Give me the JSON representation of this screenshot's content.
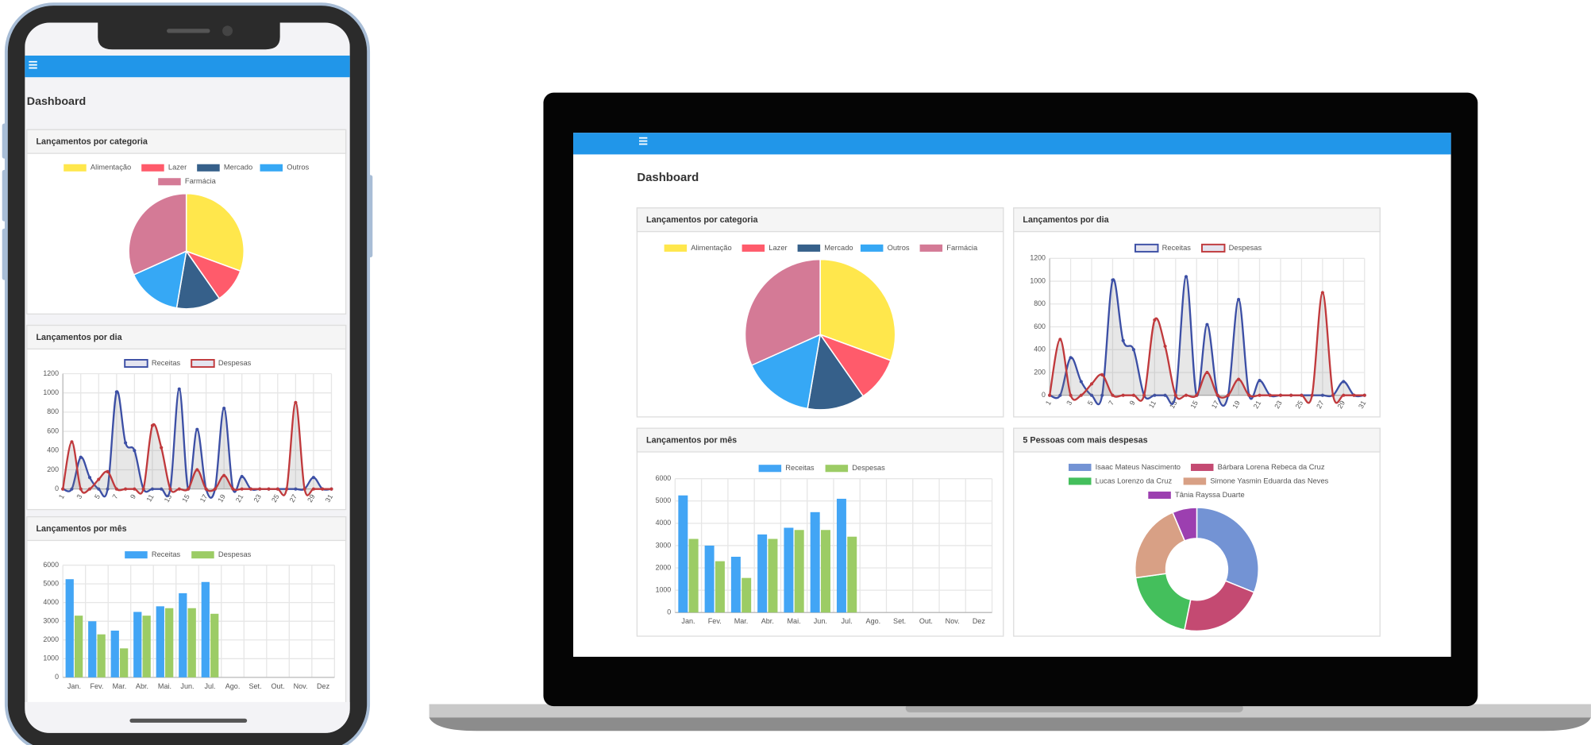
{
  "header": {
    "title": "Dashboard"
  },
  "chart_data": [
    {
      "type": "pie",
      "title": "Lançamentos por categoria",
      "categories": [
        "Alimentação",
        "Lazer",
        "Mercado",
        "Outros",
        "Farmácia"
      ],
      "values": [
        30.6,
        9.7,
        12.4,
        15.6,
        31.7
      ],
      "colors": [
        "#ffe74c",
        "#ff5b6b",
        "#36608a",
        "#36a8f5",
        "#d47a96"
      ]
    },
    {
      "type": "line",
      "title": "Lançamentos por dia",
      "x": [
        1,
        2,
        3,
        4,
        5,
        6,
        7,
        8,
        9,
        10,
        11,
        12,
        13,
        14,
        15,
        16,
        17,
        18,
        19,
        20,
        21,
        22,
        23,
        24,
        25,
        26,
        27,
        28,
        29,
        30,
        31
      ],
      "xlim": [
        1,
        31
      ],
      "xticks": [
        1,
        3,
        5,
        7,
        9,
        11,
        13,
        15,
        17,
        19,
        21,
        23,
        25,
        27,
        29,
        31
      ],
      "ylim": [
        0,
        1200
      ],
      "yticks": [
        0,
        200,
        400,
        600,
        800,
        1000,
        1200
      ],
      "grid": true,
      "series": [
        {
          "name": "Receitas",
          "color": "#3c4fa5",
          "values": [
            0,
            0,
            330,
            120,
            0,
            0,
            1010,
            480,
            400,
            0,
            0,
            0,
            0,
            1040,
            0,
            620,
            0,
            0,
            840,
            0,
            130,
            0,
            0,
            0,
            0,
            0,
            0,
            0,
            120,
            0,
            0
          ]
        },
        {
          "name": "Despesas",
          "color": "#c0393c",
          "values": [
            0,
            490,
            0,
            0,
            100,
            180,
            0,
            0,
            0,
            0,
            660,
            430,
            0,
            0,
            0,
            200,
            0,
            0,
            140,
            0,
            0,
            0,
            0,
            0,
            0,
            0,
            900,
            0,
            0,
            0,
            0
          ]
        }
      ]
    },
    {
      "type": "bar",
      "title": "Lançamentos por mês",
      "categories": [
        "Jan.",
        "Fev.",
        "Mar.",
        "Abr.",
        "Mai.",
        "Jun.",
        "Jul.",
        "Ago.",
        "Set.",
        "Out.",
        "Nov.",
        "Dez"
      ],
      "ylim": [
        0,
        6000
      ],
      "yticks": [
        0,
        1000,
        2000,
        3000,
        4000,
        5000,
        6000
      ],
      "grid": true,
      "series": [
        {
          "name": "Receitas",
          "color": "#42a5f5",
          "values": [
            5250,
            3000,
            2500,
            3500,
            3800,
            4500,
            5100,
            null,
            null,
            null,
            null,
            null
          ]
        },
        {
          "name": "Despesas",
          "color": "#9ccc65",
          "values": [
            3300,
            2300,
            1550,
            3300,
            3700,
            3700,
            3400,
            null,
            null,
            null,
            null,
            null
          ]
        }
      ]
    },
    {
      "type": "doughnut",
      "title": "5 Pessoas com mais despesas",
      "categories": [
        "Isaac Mateus Nascimento",
        "Bárbara Lorena Rebeca da Cruz",
        "Lucas Lorenzo da Cruz",
        "Simone Yasmin Eduarda das Neves",
        "Tânia Rayssa Duarte"
      ],
      "values": [
        31.1,
        22.1,
        19.6,
        20.8,
        6.4
      ],
      "colors": [
        "#7393d4",
        "#c44a72",
        "#44bf5c",
        "#d8a085",
        "#9c3fb0"
      ]
    }
  ]
}
